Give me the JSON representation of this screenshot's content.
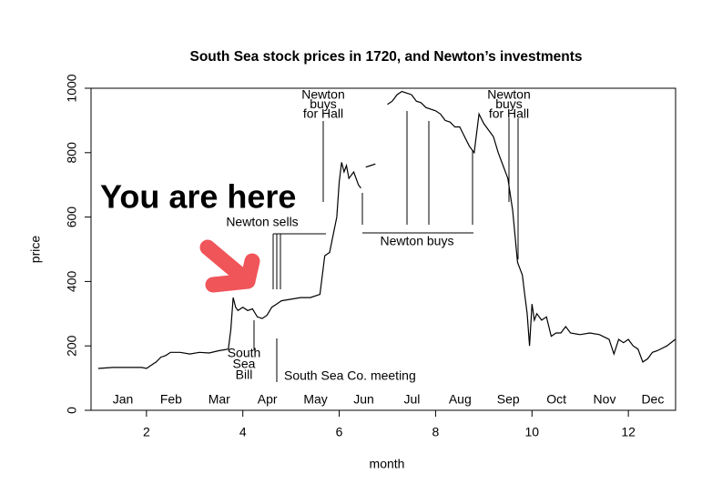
{
  "chart_data": {
    "type": "line",
    "title": "South Sea stock prices in 1720, and Newton’s investments",
    "xlabel": "month",
    "ylabel": "price",
    "xlim": [
      0.85,
      12.98
    ],
    "ylim": [
      0,
      1000
    ],
    "xticks": [
      2,
      4,
      6,
      8,
      10,
      12
    ],
    "yticks": [
      0,
      200,
      400,
      600,
      800,
      1000
    ],
    "month_labels": [
      "Jan",
      "Feb",
      "Mar",
      "Apr",
      "May",
      "Jun",
      "Jul",
      "Aug",
      "Sep",
      "Oct",
      "Nov",
      "Dec"
    ],
    "x": [
      1.0,
      1.3,
      1.6,
      1.9,
      2.0,
      2.1,
      2.2,
      2.3,
      2.4,
      2.5,
      2.7,
      2.9,
      3.1,
      3.3,
      3.5,
      3.7,
      3.75,
      3.8,
      3.85,
      3.9,
      4.0,
      4.1,
      4.2,
      4.3,
      4.4,
      4.5,
      4.6,
      4.7,
      4.8,
      5.0,
      5.2,
      5.4,
      5.6,
      5.7,
      5.8,
      5.95,
      6.0,
      6.05,
      6.1,
      6.15,
      6.2,
      6.3,
      6.4,
      6.45,
      6.5,
      6.55,
      6.65,
      6.75,
      6.85,
      7.0,
      7.1,
      7.2,
      7.3,
      7.4,
      7.5,
      7.6,
      7.7,
      7.8,
      8.0,
      8.1,
      8.2,
      8.3,
      8.4,
      8.5,
      8.6,
      8.7,
      8.8,
      8.9,
      9.0,
      9.1,
      9.2,
      9.3,
      9.4,
      9.5,
      9.6,
      9.7,
      9.75,
      9.8,
      9.85,
      9.9,
      9.95,
      10.0,
      10.05,
      10.1,
      10.2,
      10.3,
      10.4,
      10.5,
      10.6,
      10.7,
      10.8,
      11.0,
      11.2,
      11.4,
      11.6,
      11.7,
      11.8,
      11.9,
      12.0,
      12.1,
      12.2,
      12.3,
      12.4,
      12.5,
      12.6,
      12.8,
      12.97
    ],
    "series": [
      {
        "color": "#000000",
        "values": [
          130,
          133,
          133,
          133,
          130,
          140,
          150,
          165,
          170,
          180,
          180,
          175,
          180,
          178,
          185,
          190,
          250,
          350,
          320,
          310,
          320,
          310,
          315,
          290,
          285,
          295,
          320,
          330,
          340,
          345,
          350,
          350,
          360,
          480,
          490,
          600,
          710,
          770,
          740,
          760,
          720,
          740,
          700,
          690,
          null,
          755,
          760,
          765,
          null,
          950,
          960,
          980,
          990,
          985,
          980,
          960,
          955,
          940,
          930,
          920,
          900,
          895,
          880,
          880,
          850,
          820,
          800,
          920,
          890,
          870,
          850,
          800,
          760,
          720,
          620,
          460,
          440,
          420,
          360,
          300,
          200,
          330,
          280,
          300,
          280,
          290,
          230,
          240,
          240,
          260,
          240,
          235,
          240,
          235,
          220,
          175,
          220,
          210,
          220,
          200,
          190,
          150,
          160,
          180,
          185,
          200,
          220
        ]
      }
    ],
    "annotations": {
      "newton_sells": "Newton sells",
      "newton_buys": "Newton buys",
      "hall_1": [
        "Newton",
        "buys",
        "for Hall"
      ],
      "hall_2": [
        "Newton",
        "buys",
        "for Hall"
      ],
      "south_sea_bill": [
        "South",
        "Sea",
        "Bill"
      ],
      "meeting": "South Sea Co. meeting",
      "you_are_here": "You are here"
    }
  }
}
